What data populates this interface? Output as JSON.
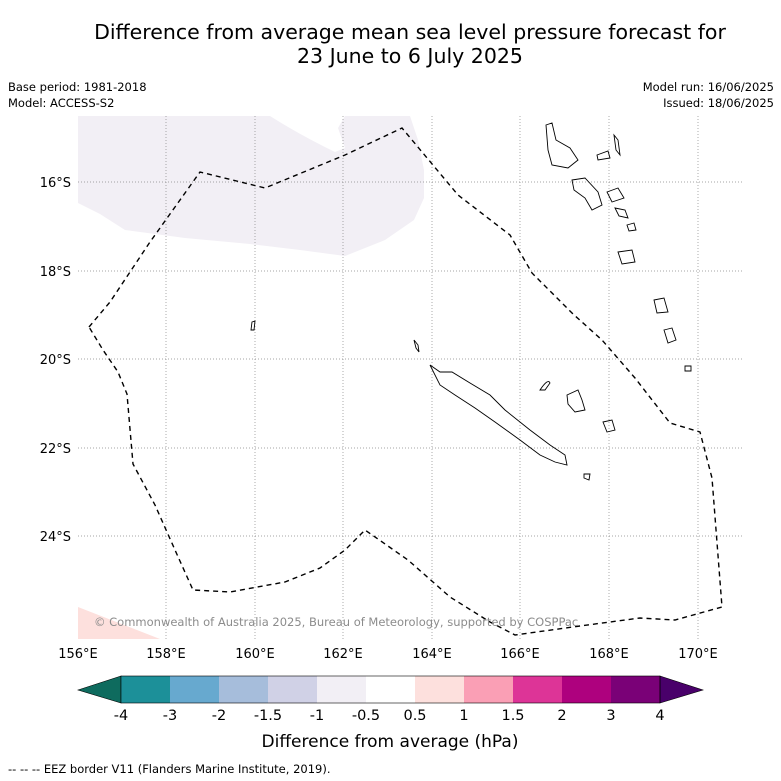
{
  "title": {
    "line1": "Difference from average mean sea level pressure forecast for",
    "line2": "23 June to 6 July 2025"
  },
  "meta": {
    "base_period": "Base period: 1981-2018",
    "model": "Model: ACCESS-S2",
    "model_run": "Model run: 16/06/2025",
    "issued": "Issued: 18/06/2025"
  },
  "map": {
    "lat_ticks": [
      "16°S",
      "18°S",
      "20°S",
      "22°S",
      "24°S"
    ],
    "lon_ticks": [
      "156°E",
      "158°E",
      "160°E",
      "162°E",
      "164°E",
      "166°E",
      "168°E",
      "170°E"
    ],
    "copyright": "© Commonwealth of Australia 2025, Bureau of Meteorology, supported by COSPPac",
    "regions": [
      {
        "name": "slight-negative-anomaly-north",
        "bin": "-1 to -0.5",
        "color": "#f2eff5"
      },
      {
        "name": "slight-positive-anomaly-southwest",
        "bin": "0.5 to 1",
        "color": "#fde0dd"
      }
    ]
  },
  "colorbar": {
    "title": "Difference from average (hPa)",
    "labels": [
      "-4",
      "-3",
      "-2",
      "-1.5",
      "-1",
      "-0.5",
      "0.5",
      "1",
      "1.5",
      "2",
      "3",
      "4"
    ],
    "colors": [
      "#0e6b5e",
      "#1c9099",
      "#67a9cf",
      "#a6bddb",
      "#d0d1e6",
      "#f2eff5",
      "#ffffff",
      "#fde0dd",
      "#fa9fb5",
      "#dd3497",
      "#ae017e",
      "#7a0177",
      "#49006a"
    ]
  },
  "footer": "--  --  -- EEZ border V11 (Flanders Marine Institute, 2019)."
}
